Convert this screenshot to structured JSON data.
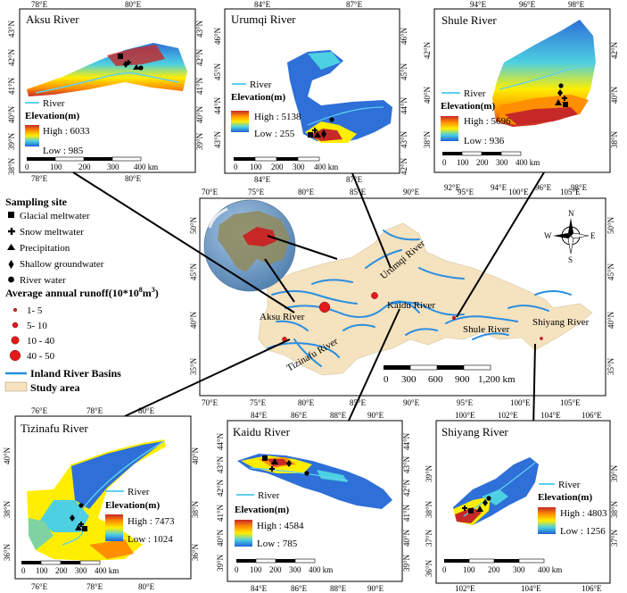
{
  "panels": {
    "aksu": {
      "title": "Aksu River",
      "lat": [
        "43°N",
        "42°N",
        "41°N",
        "40°N",
        "39°N",
        "38°N"
      ],
      "lon_top": [
        "78°E",
        "80°E"
      ],
      "lon_bottom": [
        "78°E",
        "80°E"
      ],
      "river": "River",
      "elev": "Elevation(m)",
      "high": "High : 6033",
      "low": "Low : 985",
      "scale": [
        "0",
        "100",
        "200",
        "300",
        "400 km"
      ]
    },
    "urumqi": {
      "title": "Urumqi River",
      "lat": [
        "46°N",
        "45°N",
        "44°N",
        "43°N",
        "42°N"
      ],
      "lon_top": [
        "84°E",
        "87°E"
      ],
      "lon_bottom": [
        "84°E",
        "87°E"
      ],
      "river": "River",
      "elev": "Elevation(m)",
      "high": "High : 5138",
      "low": "Low : 255",
      "scale": [
        "0",
        "100",
        "200",
        "300",
        "400 km"
      ]
    },
    "shule": {
      "title": "Shule River",
      "lat": [
        "42°N",
        "40°N",
        "38°N"
      ],
      "lon_top": [
        "94°E",
        "96°E",
        "98°E"
      ],
      "lon_bottom": [
        "92°E",
        "94°E",
        "96°E",
        "98°E"
      ],
      "river": "River",
      "elev": "Elevation(m)",
      "high": "High : 5696",
      "low": "Low : 936",
      "scale": [
        "0",
        "100",
        "200",
        "300",
        "400 km"
      ]
    },
    "tizinafu": {
      "title": "Tizinafu River",
      "lat": [
        "40°N",
        "38°N",
        "36°N"
      ],
      "lon_top": [
        "76°E",
        "78°E",
        "80°E"
      ],
      "lon_bottom": [
        "76°E",
        "78°E",
        "80°E"
      ],
      "river": "River",
      "elev": "Elevation(m)",
      "high": "High : 7473",
      "low": "Low : 1024",
      "scale": [
        "0",
        "100",
        "200",
        "300",
        "400 km"
      ]
    },
    "kaidu": {
      "title": "Kaidu River",
      "lat": [
        "44°N",
        "43°N",
        "42°N",
        "41°N",
        "40°N",
        "39°N"
      ],
      "lon_top": [
        "84°E",
        "86°E",
        "88°E",
        "90°E"
      ],
      "lon_bottom": [
        "84°E",
        "86°E",
        "88°E",
        "90°E"
      ],
      "river": "River",
      "elev": "Elevation(m)",
      "high": "High : 4584",
      "low": "Low : 785",
      "scale": [
        "0",
        "100",
        "200",
        "300",
        "400 km"
      ]
    },
    "shiyang": {
      "title": "Shiyang River",
      "lat": [
        "39°N",
        "38°N",
        "37°N",
        "36°N"
      ],
      "lon_top": [
        "100°E",
        "102°E",
        "104°E",
        "106°E"
      ],
      "lon_bottom": [
        "102°E",
        "104°E",
        "106°E"
      ],
      "river": "River",
      "elev": "Elevation(m)",
      "high": "High : 4803",
      "low": "Low : 1256",
      "scale": [
        "0",
        "100",
        "200",
        "300",
        "400 km"
      ]
    }
  },
  "main_map": {
    "lon_top": [
      "70°E",
      "75°E",
      "80°E",
      "85°E",
      "90°E",
      "95°E",
      "100°E",
      "105°E"
    ],
    "lon_bottom": [
      "70°E",
      "75°E",
      "80°E",
      "85°E",
      "90°E",
      "95°E",
      "100°E",
      "105°E"
    ],
    "lat": [
      "50°N",
      "45°N",
      "40°N",
      "35°N"
    ],
    "rivers": [
      "Aksu River",
      "Tizinafu River",
      "Urumqi River",
      "Kaidu River",
      "Shule River",
      "Shiyang River"
    ],
    "scale": [
      "0",
      "300",
      "600",
      "900",
      "1,200 km"
    ],
    "compass": [
      "N",
      "E",
      "S",
      "W"
    ]
  },
  "legend": {
    "sampling_title": "Sampling site",
    "sites": [
      "Glacial meltwater",
      "Snow meltwater",
      "Precipitation",
      "Shallow groundwater",
      "River water"
    ],
    "runoff_title": "Average annual runoff(10*10",
    "runoff_sup": "8",
    "runoff_unit": "m",
    "runoff_sup2": "3",
    "runoff_close": ")",
    "runoff_classes": [
      "1- 5",
      "5- 10",
      "10 - 40",
      "40 - 50"
    ],
    "basins": "Inland River Basins",
    "study": "Study area"
  },
  "colors": {
    "basin": "#f5e2bf",
    "river": "#2a8ee0",
    "runoff": "#e31a1c",
    "globe": "#7a9ec2",
    "dem_high": "#c62828",
    "dem_low": "#1f5fd6"
  }
}
